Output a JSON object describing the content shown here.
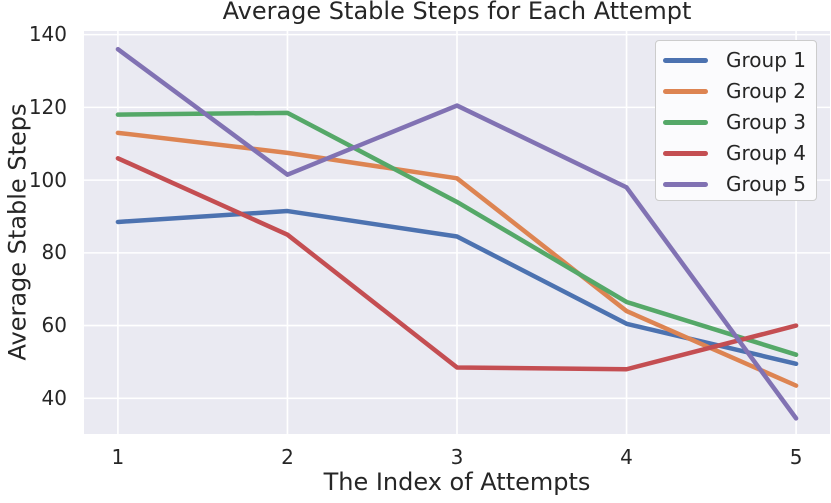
{
  "chart_data": {
    "type": "line",
    "title": "Average Stable Steps for Each Attempt",
    "xlabel": "The Index of Attempts",
    "ylabel": "Average Stable Steps",
    "x": [
      1,
      2,
      3,
      4,
      5
    ],
    "series": [
      {
        "name": "Group 1",
        "color": "#4C72B0",
        "values": [
          88.5,
          91.5,
          84.5,
          60.5,
          49.5
        ]
      },
      {
        "name": "Group 2",
        "color": "#DD8452",
        "values": [
          113,
          107.5,
          100.5,
          64,
          43.5
        ]
      },
      {
        "name": "Group 3",
        "color": "#55A868",
        "values": [
          118,
          118.5,
          94,
          66.5,
          52
        ]
      },
      {
        "name": "Group 4",
        "color": "#C44E52",
        "values": [
          106,
          85,
          48.5,
          48,
          60
        ]
      },
      {
        "name": "Group 5",
        "color": "#8172B3",
        "values": [
          136,
          101.5,
          120.5,
          98,
          34.5
        ]
      }
    ],
    "xticks": [
      1,
      2,
      3,
      4,
      5
    ],
    "yticks": [
      40,
      60,
      80,
      100,
      120,
      140
    ],
    "xlim": [
      0.8,
      5.2
    ],
    "ylim": [
      30.2,
      141
    ],
    "grid": true,
    "legend_position": "upper right",
    "style": {
      "plot_bg": "#EAEAF2",
      "grid_color": "#FFFFFF",
      "text_color": "#262626",
      "figure_bg": "#FFFFFF",
      "legend_bg": "#FBFBFD",
      "legend_border": "#CCCCCC",
      "line_width": 4.5
    }
  }
}
